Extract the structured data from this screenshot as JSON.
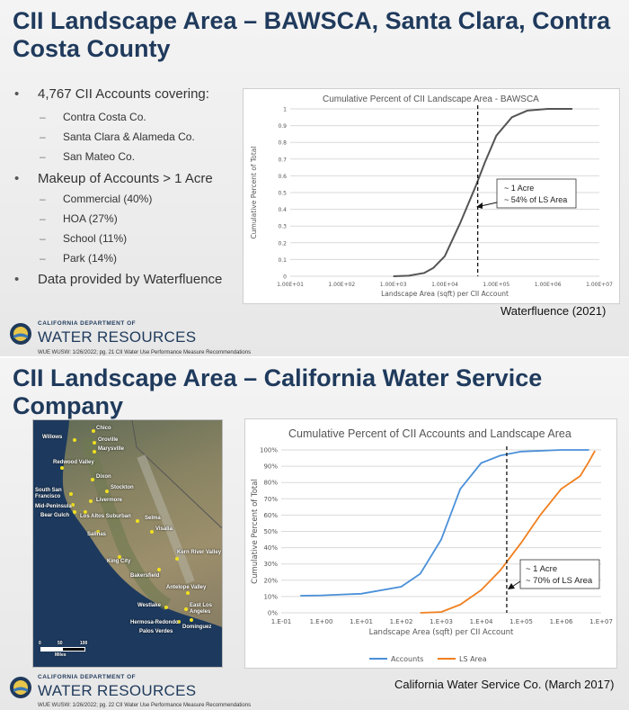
{
  "slide1": {
    "title_line1": "CII Landscape Area – BAWSCA, Santa Clara, Contra",
    "title_line2": "Costa County",
    "bullets": {
      "b1": "4,767 CII Accounts covering:",
      "b1a": "Contra Costa Co.",
      "b1b": "Santa Clara & Alameda Co.",
      "b1c": "San Mateo Co.",
      "b2": "Makeup of Accounts > 1 Acre",
      "b2a": "Commercial (40%)",
      "b2b": "HOA (27%)",
      "b2c": "School (11%)",
      "b2d": "Park (14%)",
      "b3": "Data provided by Waterfluence"
    },
    "chart": {
      "title": "Cumulative Percent of CII Landscape Area - BAWSCA",
      "xlabel": "Landscape Area (sqft) per CII Account",
      "ylabel": "Cumulative Percent of Total",
      "xticks": [
        "1.00E+01",
        "1.00E+02",
        "1.00E+03",
        "1.00E+04",
        "1.00E+05",
        "1.00E+06",
        "1.00E+07"
      ],
      "yticks": [
        "0",
        "0.1",
        "0.2",
        "0.3",
        "0.4",
        "0.5",
        "0.6",
        "0.7",
        "0.8",
        "0.9",
        "1"
      ],
      "annotation_line1": "~ 1 Acre",
      "annotation_line2": "~ 54% of LS Area"
    },
    "source": "Waterfluence (2021)",
    "dwr_dept": "CALIFORNIA DEPARTMENT OF",
    "dwr_org": "WATER RESOURCES",
    "footer": "WUE WUSW: 1/26/2022; pg. 21   CII Water Use Performance Measure Recommendations"
  },
  "slide2": {
    "title_line1": "CII Landscape Area –  California Water Service",
    "title_line2": "Company",
    "chart": {
      "title": "Cumulative Percent of CII Accounts and Landscape Area",
      "xlabel": "Landscape Area (sqft) per CII Account",
      "ylabel": "Cumulative Percent of Total",
      "xticks": [
        "1.E-01",
        "1.E+00",
        "1.E+01",
        "1.E+02",
        "1.E+03",
        "1.E+04",
        "1.E+05",
        "1.E+06",
        "1.E+07"
      ],
      "yticks": [
        "0%",
        "10%",
        "20%",
        "30%",
        "40%",
        "50%",
        "60%",
        "70%",
        "80%",
        "90%",
        "100%"
      ],
      "legend_accounts": "Accounts",
      "legend_ls": "LS Area",
      "annotation_line1": "~ 1 Acre",
      "annotation_line2": "~ 70% of LS Area",
      "colors": {
        "accounts": "#4a90d9",
        "ls_area": "#f07f1e"
      }
    },
    "map": {
      "cities": [
        "Chico",
        "Willows",
        "Oroville",
        "Marysville",
        "Redwood Valley",
        "Dixon",
        "Stockton",
        "South San Francisco",
        "Mid-Peninsula",
        "Bear Gulch",
        "Livermore",
        "Los Altos Suburban",
        "Salinas",
        "Selma",
        "Visalia",
        "King City",
        "Kern River Valley",
        "Bakersfield",
        "Antelope Valley",
        "Westlake",
        "East Los Angeles",
        "Hermosa-Redondo",
        "Palos Verdes",
        "Dominguez"
      ],
      "scale_0": "0",
      "scale_50": "50",
      "scale_100": "100",
      "scale_unit": "Miles"
    },
    "source": "California Water Service Co. (March 2017)",
    "dwr_dept": "CALIFORNIA DEPARTMENT OF",
    "dwr_org": "WATER RESOURCES",
    "footer": "WUE WUSW: 1/26/2022; pg. 22   CII Water Use Performance Measure Recommendations"
  },
  "chart_data": [
    {
      "type": "line",
      "title": "Cumulative Percent of CII Landscape Area - BAWSCA",
      "xlabel": "Landscape Area (sqft) per CII Account",
      "ylabel": "Cumulative Percent of Total",
      "xscale": "log",
      "xlim": [
        10,
        10000000
      ],
      "ylim": [
        0,
        1
      ],
      "series": [
        {
          "x": [
            1000,
            2000,
            4000,
            6000,
            10000,
            20000,
            40000,
            60000,
            100000,
            200000,
            400000,
            1000000,
            3000000
          ],
          "y": [
            0,
            0.003,
            0.02,
            0.05,
            0.12,
            0.32,
            0.54,
            0.68,
            0.84,
            0.95,
            0.99,
            1.0,
            1.0
          ]
        }
      ],
      "grid": "horizontal",
      "annotations": [
        "~ 1 Acre",
        "~ 54% of LS Area"
      ],
      "marker_line_x": 43560
    },
    {
      "type": "line",
      "title": "Cumulative Percent of CII Accounts and Landscape Area",
      "xlabel": "Landscape Area (sqft) per CII Account",
      "ylabel": "Cumulative Percent of Total",
      "xscale": "log",
      "xlim": [
        0.1,
        10000000
      ],
      "ylim": [
        0,
        1
      ],
      "series": [
        {
          "name": "Accounts",
          "x": [
            0.3,
            1,
            10,
            100,
            300,
            1000,
            3000,
            10000,
            30000,
            100000,
            1000000,
            5000000
          ],
          "y": [
            0.105,
            0.107,
            0.117,
            0.16,
            0.24,
            0.45,
            0.76,
            0.92,
            0.965,
            0.99,
            1.0,
            1.0
          ]
        },
        {
          "name": "LS Area",
          "x": [
            300,
            1000,
            3000,
            10000,
            30000,
            100000,
            300000,
            1000000,
            3000000,
            5000000,
            7000000
          ],
          "y": [
            0,
            0.005,
            0.05,
            0.14,
            0.26,
            0.43,
            0.6,
            0.76,
            0.84,
            0.93,
            0.995
          ]
        }
      ],
      "grid": "horizontal",
      "legend": "bottom",
      "annotations": [
        "~ 1 Acre",
        "~ 70% of LS Area"
      ],
      "marker_line_x": 43560
    }
  ]
}
